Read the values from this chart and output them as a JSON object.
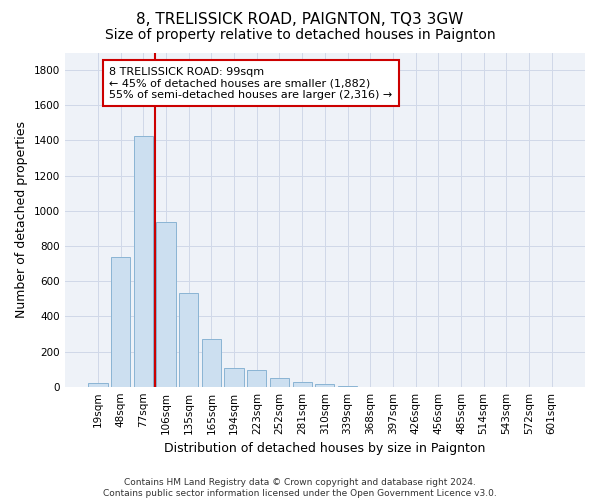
{
  "title": "8, TRELISSICK ROAD, PAIGNTON, TQ3 3GW",
  "subtitle": "Size of property relative to detached houses in Paignton",
  "xlabel": "Distribution of detached houses by size in Paignton",
  "ylabel": "Number of detached properties",
  "bar_labels": [
    "19sqm",
    "48sqm",
    "77sqm",
    "106sqm",
    "135sqm",
    "165sqm",
    "194sqm",
    "223sqm",
    "252sqm",
    "281sqm",
    "310sqm",
    "339sqm",
    "368sqm",
    "397sqm",
    "426sqm",
    "456sqm",
    "485sqm",
    "514sqm",
    "543sqm",
    "572sqm",
    "601sqm"
  ],
  "bar_values": [
    20,
    735,
    1425,
    935,
    530,
    270,
    105,
    92,
    50,
    28,
    15,
    5,
    1,
    0,
    0,
    0,
    0,
    0,
    0,
    0,
    0
  ],
  "bar_color": "#ccdff0",
  "bar_edge_color": "#8ab4d4",
  "vline_color": "#cc0000",
  "vline_x": 2.5,
  "ylim": [
    0,
    1900
  ],
  "yticks": [
    0,
    200,
    400,
    600,
    800,
    1000,
    1200,
    1400,
    1600,
    1800
  ],
  "annotation_title": "8 TRELISSICK ROAD: 99sqm",
  "annotation_line1": "← 45% of detached houses are smaller (1,882)",
  "annotation_line2": "55% of semi-detached houses are larger (2,316) →",
  "footer_line1": "Contains HM Land Registry data © Crown copyright and database right 2024.",
  "footer_line2": "Contains public sector information licensed under the Open Government Licence v3.0.",
  "title_fontsize": 11,
  "subtitle_fontsize": 10,
  "ylabel_fontsize": 9,
  "xlabel_fontsize": 9,
  "annotation_fontsize": 8,
  "tick_fontsize": 7.5,
  "footer_fontsize": 6.5
}
